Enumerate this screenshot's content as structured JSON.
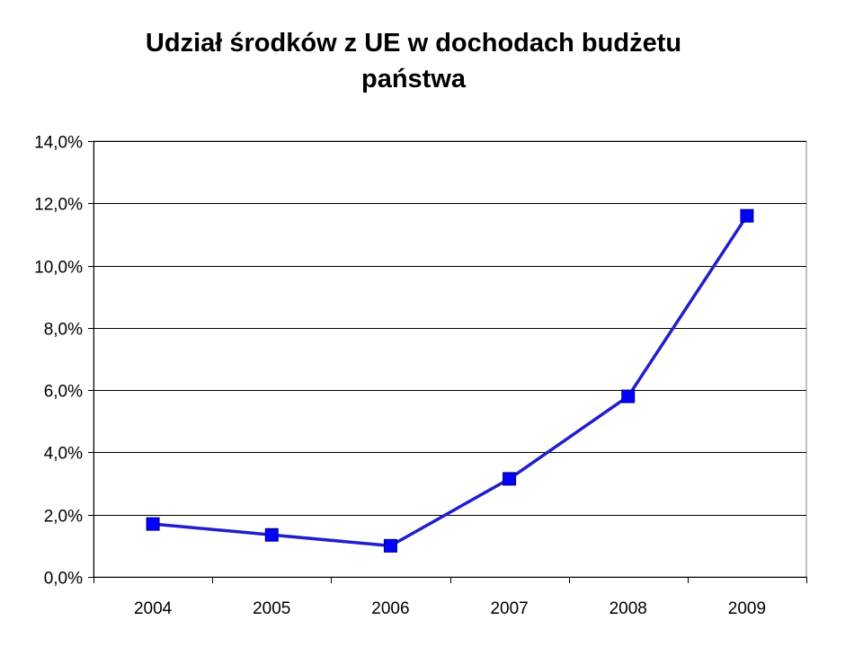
{
  "chart_data": {
    "type": "line",
    "title_lines": [
      "Udział środków z UE w dochodach budżetu",
      "państwa"
    ],
    "categories": [
      "2004",
      "2005",
      "2006",
      "2007",
      "2008",
      "2009"
    ],
    "series": [
      {
        "values": [
          1.7,
          1.35,
          1.0,
          3.15,
          5.8,
          11.6
        ]
      }
    ],
    "ylim": [
      0,
      14
    ],
    "yticks": [
      0,
      2,
      4,
      6,
      8,
      10,
      12,
      14
    ],
    "ytick_labels": [
      "0,0%",
      "2,0%",
      "4,0%",
      "6,0%",
      "8,0%",
      "10,0%",
      "12,0%",
      "14,0%"
    ],
    "xlabel": "",
    "ylabel": "",
    "grid": true,
    "legend": "none",
    "colors": {
      "series": "#0000ff",
      "line": "#1f1fcc",
      "grid": "#000000"
    }
  }
}
